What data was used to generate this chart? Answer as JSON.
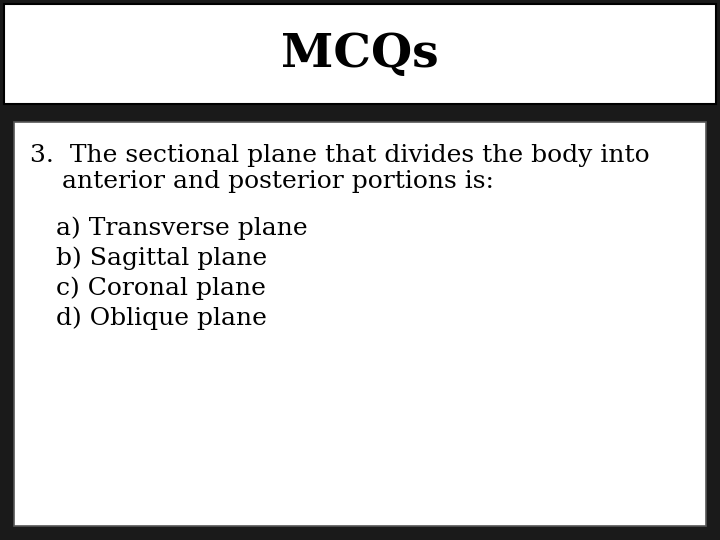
{
  "title": "MCQs",
  "title_fontsize": 34,
  "title_fontweight": "bold",
  "header_bg": "#ffffff",
  "header_border_color": "#000000",
  "page_bg": "#1a1a1a",
  "question_line1": "3.  The sectional plane that divides the body into",
  "question_line2": "    anterior and posterior portions is:",
  "options": [
    "a) Transverse plane",
    "b) Sagittal plane",
    "c) Coronal plane",
    "d) Oblique plane"
  ],
  "content_box_bg": "#ffffff",
  "content_box_border": "#555555",
  "text_color": "#000000",
  "question_fontsize": 18,
  "options_fontsize": 18,
  "font_family": "serif"
}
